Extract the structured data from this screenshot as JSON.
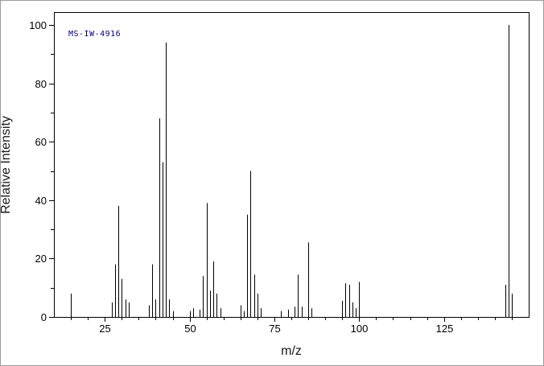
{
  "chart_data": {
    "type": "bar",
    "subtype": "mass-spectrum-stick-plot",
    "title": "",
    "annotation": "MS-IW-4916",
    "xlabel": "m/z",
    "ylabel": "Relative Intensity",
    "xlim": [
      10,
      150
    ],
    "ylim": [
      0,
      100
    ],
    "x_major_ticks": [
      25,
      50,
      75,
      100,
      125
    ],
    "x_minor_step": 5,
    "y_major_ticks": [
      0,
      20,
      40,
      60,
      80,
      100
    ],
    "y_minor_step": 10,
    "grid": false,
    "legend": false,
    "colors": {
      "line": "#000000",
      "frame": "#000000",
      "text": "#000000",
      "annotation": "#00007a",
      "background": "#ffffff"
    },
    "peaks": [
      [
        15,
        8
      ],
      [
        27,
        5
      ],
      [
        28,
        18
      ],
      [
        29,
        38
      ],
      [
        30,
        13
      ],
      [
        31,
        6
      ],
      [
        32,
        5
      ],
      [
        38,
        4
      ],
      [
        39,
        18
      ],
      [
        40,
        6
      ],
      [
        41,
        68
      ],
      [
        42,
        53
      ],
      [
        43,
        94
      ],
      [
        44,
        6
      ],
      [
        45,
        2
      ],
      [
        50,
        2
      ],
      [
        51,
        3
      ],
      [
        53,
        2.5
      ],
      [
        54,
        14
      ],
      [
        55,
        39
      ],
      [
        56,
        9
      ],
      [
        57,
        19
      ],
      [
        58,
        8
      ],
      [
        59,
        3
      ],
      [
        65,
        4
      ],
      [
        66,
        2
      ],
      [
        67,
        35
      ],
      [
        68,
        50
      ],
      [
        69,
        14.5
      ],
      [
        70,
        8
      ],
      [
        71,
        3
      ],
      [
        77,
        2
      ],
      [
        79,
        2.5
      ],
      [
        81,
        3.5
      ],
      [
        82,
        14.5
      ],
      [
        83,
        3.5
      ],
      [
        85,
        25.5
      ],
      [
        86,
        3
      ],
      [
        95,
        5.5
      ],
      [
        96,
        11.5
      ],
      [
        97,
        11
      ],
      [
        98,
        5
      ],
      [
        99,
        3
      ],
      [
        100,
        12
      ],
      [
        143,
        11
      ],
      [
        144,
        100
      ],
      [
        145,
        8
      ]
    ]
  }
}
